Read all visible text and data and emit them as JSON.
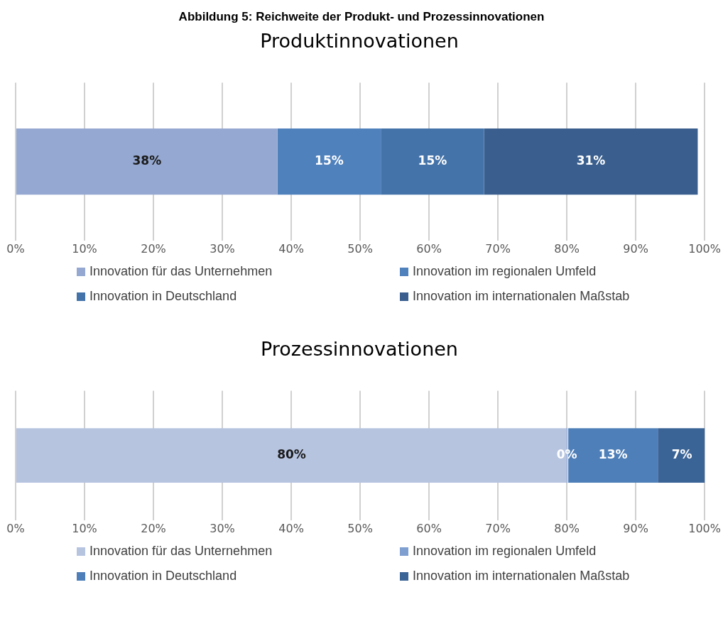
{
  "chart_data": [
    {
      "type": "bar",
      "orientation": "horizontal",
      "stacked": true,
      "title": "Abbildung 5: Reichweite der Produkt- und Prozessinnovationen",
      "subtitle": "Produktinnovationen",
      "categories": [
        null
      ],
      "series": [
        {
          "name": "Innovation für das Unternehmen",
          "color": "#95a8d1",
          "values": [
            38
          ],
          "value_labels": [
            "38%"
          ]
        },
        {
          "name": "Innovation im regionalen Umfeld",
          "color": "#4f81bd",
          "values": [
            15
          ],
          "value_labels": [
            "15%"
          ]
        },
        {
          "name": "Innovation in Deutschland",
          "color": "#4473a9",
          "values": [
            15
          ],
          "value_labels": [
            "15%"
          ]
        },
        {
          "name": "Innovation im internationalen Maßstab",
          "color": "#3a5f8e",
          "values": [
            31
          ],
          "value_labels": [
            "31%"
          ]
        }
      ],
      "xlim": [
        0,
        100
      ],
      "xticks": [
        {
          "value": 0,
          "label": "0%"
        },
        {
          "value": 10,
          "label": "10%"
        },
        {
          "value": 20,
          "label": "20%"
        },
        {
          "value": 30,
          "label": "30%"
        },
        {
          "value": 40,
          "label": "40%"
        },
        {
          "value": 50,
          "label": "50%"
        },
        {
          "value": 60,
          "label": "60%"
        },
        {
          "value": 70,
          "label": "70%"
        },
        {
          "value": 80,
          "label": "80%"
        },
        {
          "value": 90,
          "label": "90%"
        },
        {
          "value": 100,
          "label": "100%"
        }
      ],
      "grid": "x",
      "legend": "bottom",
      "tick_labels": "x"
    },
    {
      "type": "bar",
      "orientation": "horizontal",
      "stacked": true,
      "subtitle": "Prozessinnovationen",
      "categories": [
        null
      ],
      "series": [
        {
          "name": "Innovation für das Unternehmen",
          "color": "#b7c4e0",
          "values": [
            80
          ],
          "value_labels": [
            "80%"
          ]
        },
        {
          "name": "Innovation im regionalen Umfeld",
          "color": "#7f9fd0",
          "values": [
            0
          ],
          "value_labels": [
            "0%"
          ]
        },
        {
          "name": "Innovation in Deutschland",
          "color": "#4f7fb8",
          "values": [
            13
          ],
          "value_labels": [
            "13%"
          ]
        },
        {
          "name": "Innovation im internationalen Maßstab",
          "color": "#3a6396",
          "values": [
            7
          ],
          "value_labels": [
            "7%"
          ]
        }
      ],
      "xlim": [
        0,
        100
      ],
      "xticks": [
        {
          "value": 0,
          "label": "0%"
        },
        {
          "value": 10,
          "label": "10%"
        },
        {
          "value": 20,
          "label": "20%"
        },
        {
          "value": 30,
          "label": "30%"
        },
        {
          "value": 40,
          "label": "40%"
        },
        {
          "value": 50,
          "label": "50%"
        },
        {
          "value": 60,
          "label": "60%"
        },
        {
          "value": 70,
          "label": "70%"
        },
        {
          "value": 80,
          "label": "80%"
        },
        {
          "value": 90,
          "label": "90%"
        },
        {
          "value": 100,
          "label": "100%"
        }
      ],
      "grid": "x",
      "legend": "bottom",
      "tick_labels": "x"
    }
  ]
}
